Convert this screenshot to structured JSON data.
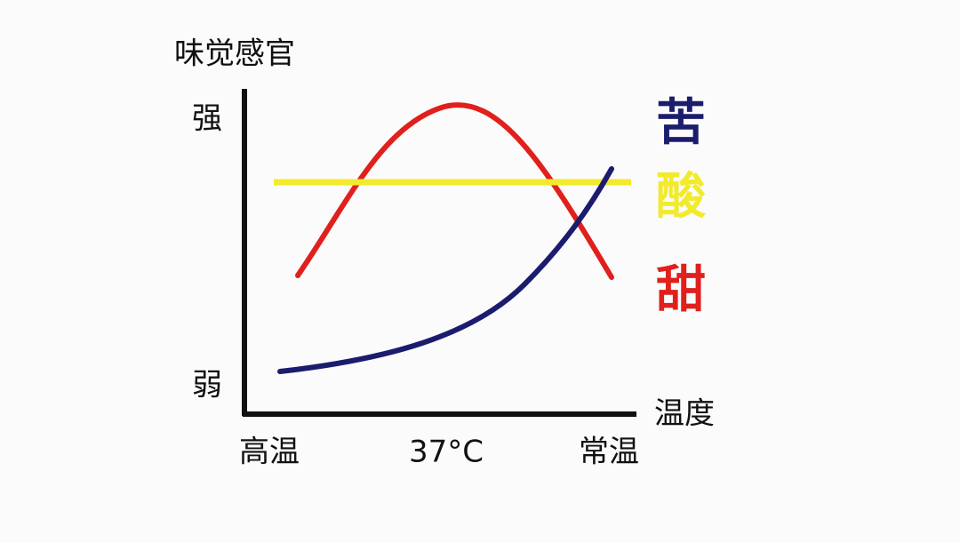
{
  "axis": {
    "y_title": "味觉感官",
    "y_high": "强",
    "y_low": "弱",
    "x_title": "温度",
    "x_labels": [
      "高温",
      "37°C",
      "常温"
    ]
  },
  "legend": [
    {
      "label": "苦",
      "color": "#1c1c6e"
    },
    {
      "label": "酸",
      "color": "#f2ea2a"
    },
    {
      "label": "甜",
      "color": "#e0201c"
    }
  ]
}
